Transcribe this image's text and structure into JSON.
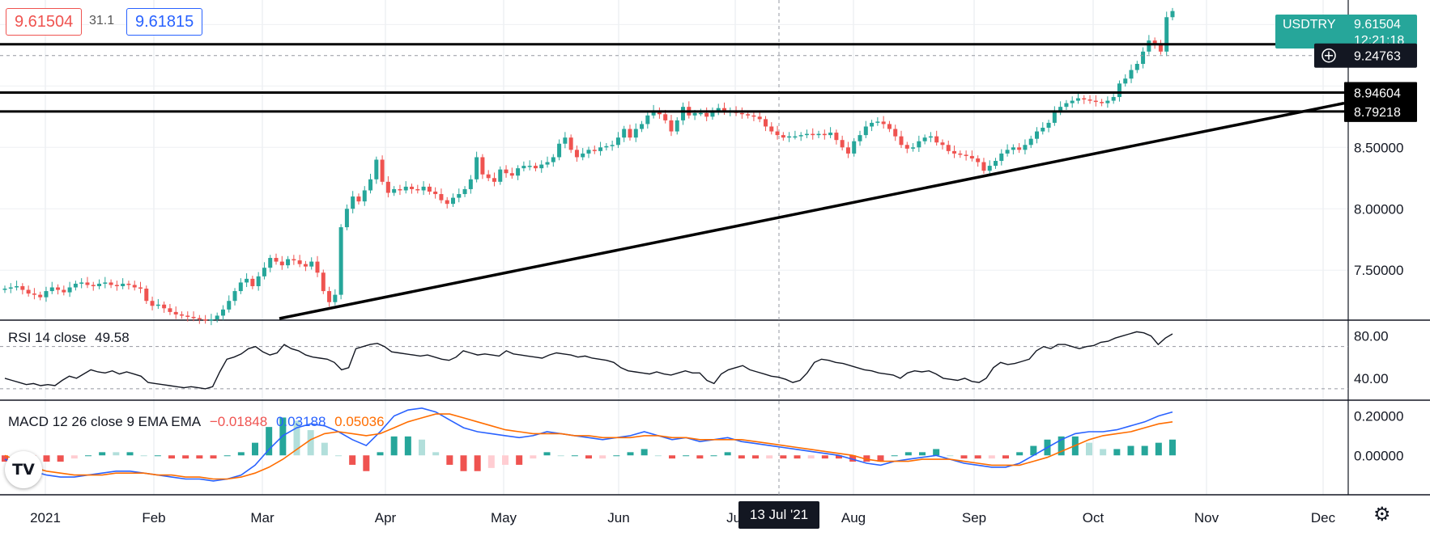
{
  "header": {
    "bid": "9.61504",
    "spread": "31.1",
    "ask": "9.61815"
  },
  "price_axis": {
    "symbol": "USDTRY",
    "last_price": "9.61504",
    "countdown": "12:21:18",
    "crosshair_price": "9.24763",
    "level_1": "8.94604",
    "level_2": "8.79218"
  },
  "rsi": {
    "label": "RSI 14 close",
    "value": "49.58"
  },
  "macd": {
    "label": "MACD 12 26 close 9 EMA EMA",
    "histogram": "−0.01848",
    "macd": "0.03188",
    "signal": "0.05036"
  },
  "crosshair_date": "13 Jul '21",
  "icons": {
    "logo": "tradingview-logo-icon",
    "settings": "gear-icon",
    "crosshair": "crosshair-circle-icon"
  },
  "colors": {
    "up": "#26a69a",
    "down": "#ef5350",
    "macd_line": "#2962ff",
    "signal_line": "#ff6d00",
    "badge": "#26a69a"
  },
  "chart_data": [
    {
      "type": "candlestick",
      "title": "USDTRY daily",
      "x_ticks": [
        "2021",
        "Feb",
        "Mar",
        "Apr",
        "May",
        "Jun",
        "Jul",
        "Aug",
        "Sep",
        "Oct",
        "Nov",
        "Dec"
      ],
      "y_ticks": [
        "7.50000",
        "8.00000",
        "8.50000"
      ],
      "ylim": [
        7.1,
        9.7
      ],
      "close": [
        7.35,
        7.36,
        7.37,
        7.34,
        7.31,
        7.3,
        7.28,
        7.33,
        7.36,
        7.34,
        7.32,
        7.36,
        7.39,
        7.4,
        7.38,
        7.37,
        7.39,
        7.4,
        7.38,
        7.37,
        7.39,
        7.38,
        7.36,
        7.35,
        7.25,
        7.21,
        7.22,
        7.19,
        7.16,
        7.14,
        7.13,
        7.12,
        7.11,
        7.1,
        7.09,
        7.1,
        7.13,
        7.18,
        7.25,
        7.33,
        7.4,
        7.43,
        7.37,
        7.45,
        7.52,
        7.6,
        7.57,
        7.54,
        7.59,
        7.58,
        7.55,
        7.53,
        7.57,
        7.48,
        7.33,
        7.24,
        7.3,
        7.85,
        8.0,
        8.1,
        8.06,
        8.15,
        8.24,
        8.4,
        8.22,
        8.13,
        8.16,
        8.15,
        8.18,
        8.16,
        8.15,
        8.18,
        8.14,
        8.12,
        8.07,
        8.04,
        8.09,
        8.12,
        8.16,
        8.24,
        8.42,
        8.28,
        8.25,
        8.22,
        8.32,
        8.29,
        8.27,
        8.33,
        8.35,
        8.35,
        8.33,
        8.36,
        8.38,
        8.42,
        8.53,
        8.58,
        8.48,
        8.42,
        8.45,
        8.48,
        8.47,
        8.5,
        8.51,
        8.52,
        8.58,
        8.65,
        8.58,
        8.65,
        8.69,
        8.76,
        8.8,
        8.77,
        8.72,
        8.63,
        8.72,
        8.83,
        8.76,
        8.78,
        8.78,
        8.75,
        8.8,
        8.82,
        8.79,
        8.8,
        8.78,
        8.77,
        8.76,
        8.75,
        8.73,
        8.67,
        8.63,
        8.6,
        8.58,
        8.59,
        8.59,
        8.6,
        8.61,
        8.6,
        8.61,
        8.6,
        8.62,
        8.56,
        8.5,
        8.45,
        8.55,
        8.6,
        8.67,
        8.7,
        8.71,
        8.69,
        8.65,
        8.59,
        8.52,
        8.49,
        8.5,
        8.55,
        8.58,
        8.59,
        8.54,
        8.52,
        8.47,
        8.45,
        8.44,
        8.43,
        8.41,
        8.38,
        8.31,
        8.35,
        8.39,
        8.45,
        8.48,
        8.5,
        8.48,
        8.52,
        8.57,
        8.63,
        8.66,
        8.7,
        8.8,
        8.83,
        8.86,
        8.88,
        8.9,
        8.89,
        8.88,
        8.87,
        8.86,
        8.88,
        8.91,
        9.02,
        9.06,
        9.13,
        9.18,
        9.28,
        9.37,
        9.34,
        9.28,
        9.56,
        9.61
      ]
    },
    {
      "type": "line",
      "title": "RSI 14 close",
      "y_ticks": [
        "80.00",
        "40.00"
      ],
      "ylim": [
        20,
        95
      ],
      "values": [
        40,
        38,
        36,
        34,
        35,
        33,
        34,
        33,
        38,
        42,
        40,
        44,
        48,
        46,
        45,
        47,
        44,
        46,
        44,
        42,
        36,
        35,
        34,
        33,
        32,
        31,
        32,
        31,
        30,
        32,
        46,
        58,
        60,
        63,
        68,
        70,
        65,
        62,
        64,
        72,
        68,
        66,
        62,
        60,
        59,
        58,
        55,
        48,
        50,
        68,
        70,
        72,
        73,
        70,
        65,
        64,
        63,
        62,
        61,
        62,
        60,
        58,
        57,
        60,
        66,
        64,
        62,
        63,
        62,
        61,
        66,
        63,
        62,
        61,
        60,
        59,
        62,
        64,
        63,
        62,
        60,
        61,
        59,
        58,
        57,
        55,
        50,
        47,
        46,
        45,
        44,
        46,
        44,
        43,
        45,
        47,
        45,
        45,
        38,
        35,
        44,
        48,
        50,
        52,
        48,
        46,
        44,
        42,
        41,
        39,
        36,
        38,
        45,
        55,
        58,
        57,
        55,
        54,
        52,
        50,
        48,
        47,
        45,
        44,
        43,
        40,
        45,
        47,
        46,
        47,
        44,
        40,
        39,
        38,
        40,
        37,
        36,
        40,
        50,
        55,
        53,
        54,
        56,
        58,
        66,
        70,
        68,
        72,
        72,
        70,
        68,
        70,
        71,
        74,
        75,
        78,
        80,
        82,
        84,
        83,
        80,
        72,
        78,
        82
      ]
    },
    {
      "type": "bar_line",
      "title": "MACD 12 26 close 9 EMA EMA",
      "y_ticks": [
        "0.20000",
        "0.00000"
      ],
      "ylim": [
        -0.2,
        0.28
      ],
      "macd": [
        -0.02,
        -0.05,
        -0.08,
        -0.1,
        -0.11,
        -0.11,
        -0.1,
        -0.09,
        -0.08,
        -0.08,
        -0.09,
        -0.1,
        -0.11,
        -0.12,
        -0.12,
        -0.13,
        -0.12,
        -0.1,
        -0.05,
        0.03,
        0.1,
        0.14,
        0.16,
        0.15,
        0.12,
        0.08,
        0.05,
        0.12,
        0.2,
        0.23,
        0.24,
        0.22,
        0.18,
        0.14,
        0.12,
        0.11,
        0.1,
        0.09,
        0.1,
        0.12,
        0.11,
        0.1,
        0.09,
        0.08,
        0.09,
        0.1,
        0.12,
        0.1,
        0.08,
        0.09,
        0.07,
        0.08,
        0.09,
        0.07,
        0.06,
        0.05,
        0.04,
        0.03,
        0.02,
        0.01,
        0.0,
        -0.02,
        -0.04,
        -0.05,
        -0.03,
        -0.02,
        -0.01,
        0.0,
        -0.02,
        -0.04,
        -0.05,
        -0.06,
        -0.06,
        -0.04,
        0.0,
        0.04,
        0.08,
        0.11,
        0.12,
        0.12,
        0.13,
        0.15,
        0.17,
        0.2,
        0.22
      ],
      "signal": [
        0.0,
        -0.03,
        -0.06,
        -0.08,
        -0.09,
        -0.1,
        -0.1,
        -0.1,
        -0.09,
        -0.09,
        -0.09,
        -0.1,
        -0.1,
        -0.11,
        -0.11,
        -0.12,
        -0.12,
        -0.11,
        -0.09,
        -0.06,
        -0.02,
        0.03,
        0.08,
        0.11,
        0.12,
        0.11,
        0.1,
        0.11,
        0.14,
        0.17,
        0.19,
        0.21,
        0.21,
        0.19,
        0.17,
        0.15,
        0.13,
        0.12,
        0.11,
        0.11,
        0.11,
        0.1,
        0.1,
        0.09,
        0.09,
        0.09,
        0.1,
        0.1,
        0.09,
        0.09,
        0.08,
        0.08,
        0.08,
        0.08,
        0.07,
        0.06,
        0.05,
        0.04,
        0.03,
        0.02,
        0.01,
        0.0,
        -0.02,
        -0.03,
        -0.03,
        -0.03,
        -0.02,
        -0.02,
        -0.02,
        -0.03,
        -0.04,
        -0.05,
        -0.05,
        -0.05,
        -0.03,
        -0.01,
        0.02,
        0.05,
        0.08,
        0.1,
        0.11,
        0.12,
        0.14,
        0.16,
        0.17
      ]
    }
  ]
}
